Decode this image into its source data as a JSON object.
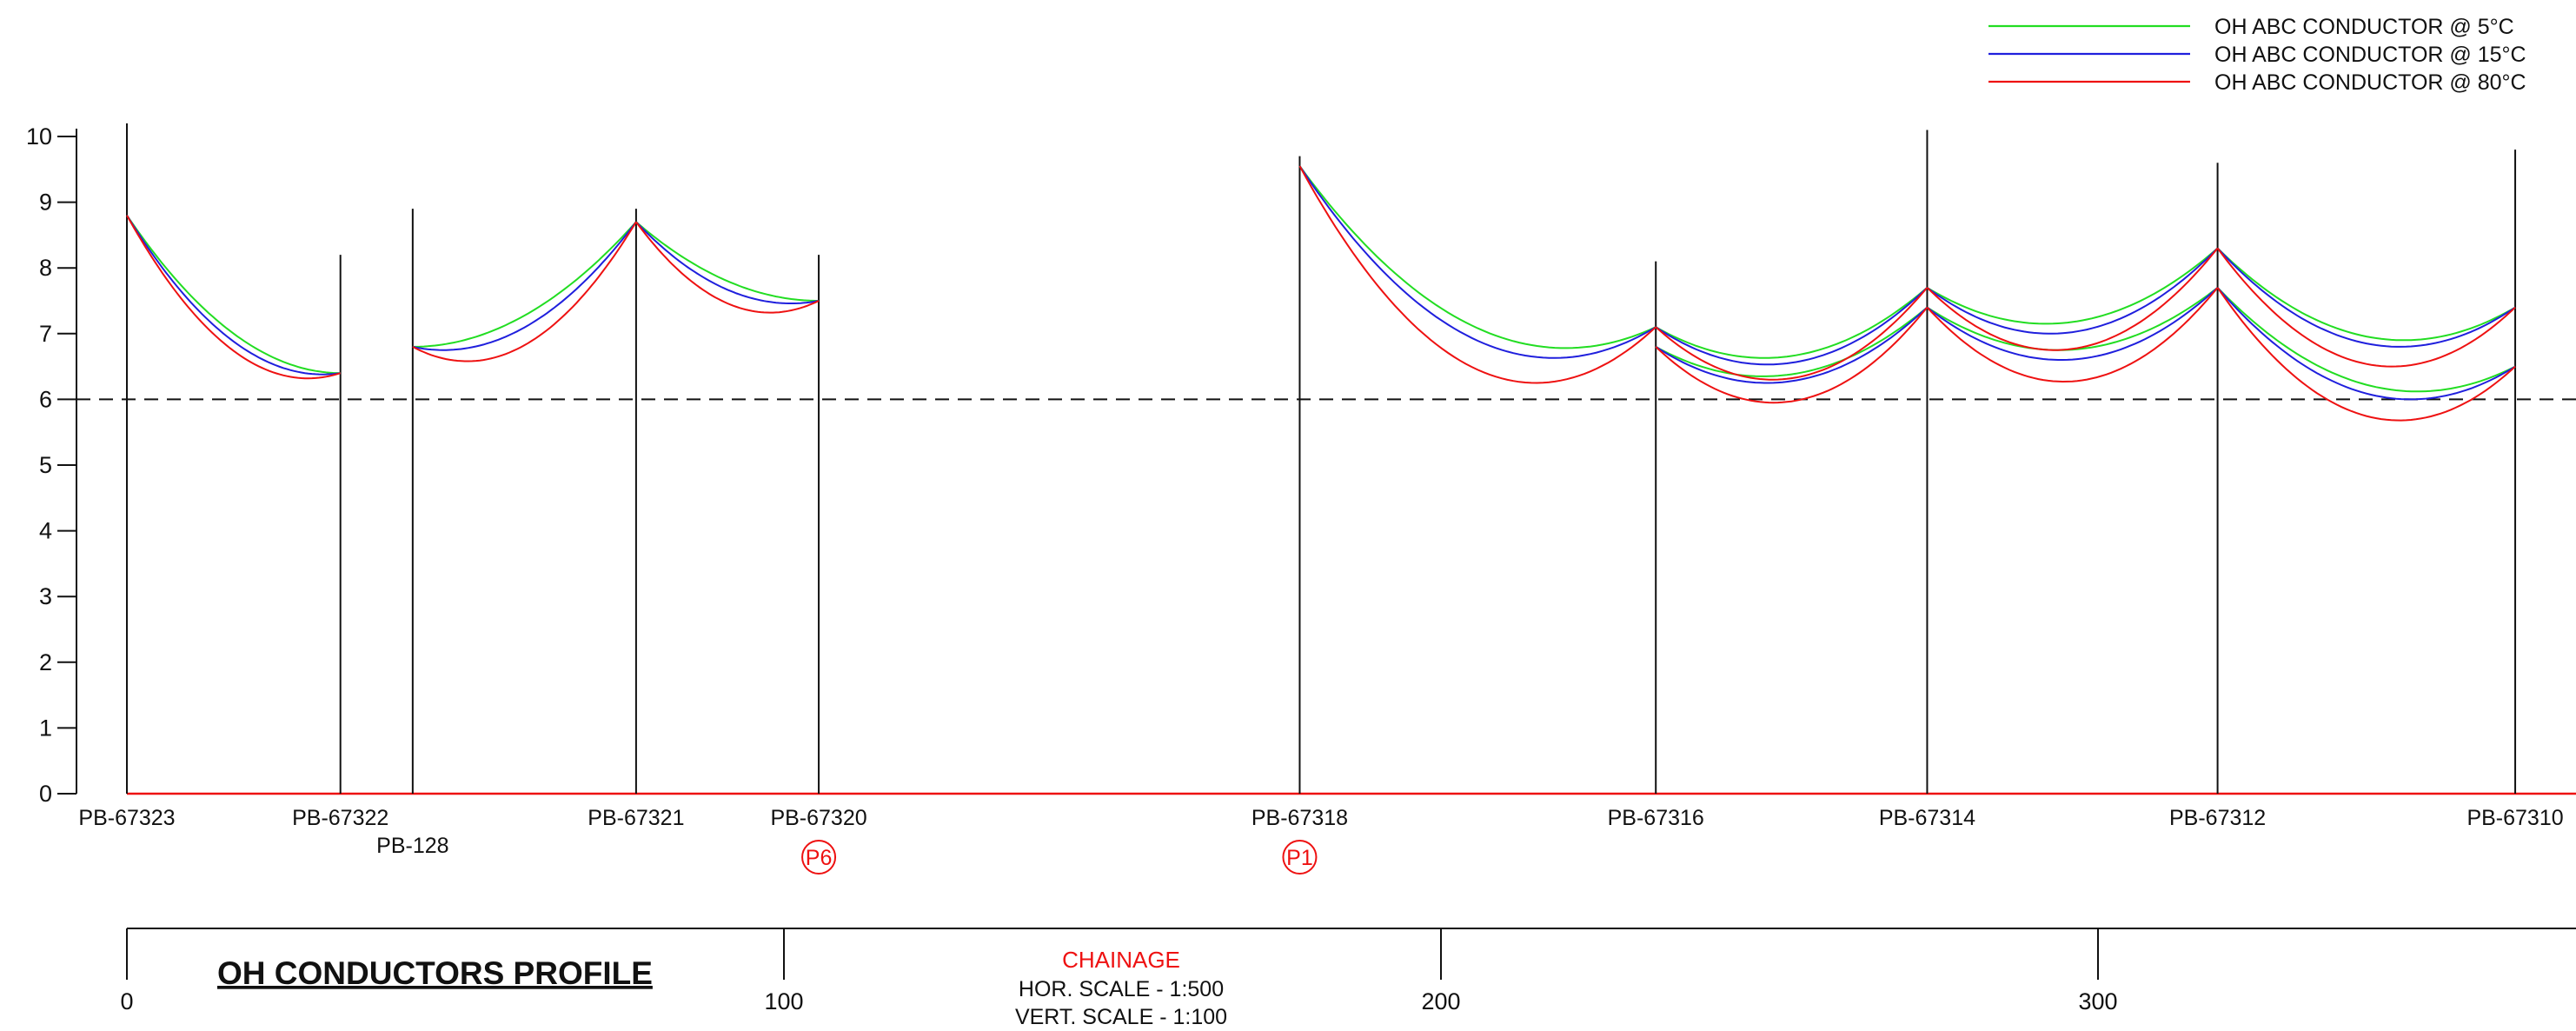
{
  "title": "OH CONDUCTORS PROFILE",
  "chainage": {
    "label": "CHAINAGE",
    "hor_scale": "HOR. SCALE - 1:500",
    "vert_scale": "VERT. SCALE - 1:100",
    "ticks": [
      0,
      100,
      200,
      300
    ]
  },
  "y_axis": {
    "min": 0,
    "max": 10,
    "ticks": [
      0,
      1,
      2,
      3,
      4,
      5,
      6,
      7,
      8,
      9,
      10
    ]
  },
  "clearance_line": {
    "value": 6
  },
  "colors": {
    "t5": "#22dd22",
    "t15": "#1f1fdd",
    "t80": "#ee1111",
    "ground": "#ee1111",
    "marker": "#ee1111",
    "chainage_title": "#ee1111"
  },
  "legend": [
    {
      "key": "t5",
      "label": "OH ABC CONDUCTOR @ 5°C"
    },
    {
      "key": "t15",
      "label": "OH ABC CONDUCTOR @ 15°C"
    },
    {
      "key": "t80",
      "label": "OH ABC CONDUCTOR @ 80°C"
    }
  ],
  "poles": [
    {
      "id": "p67323",
      "name": "PB-67323",
      "chainage": 0,
      "top": 10.2,
      "label_row": 1
    },
    {
      "id": "p67322",
      "name": "PB-67322",
      "chainage": 32.5,
      "top": 8.2,
      "label_row": 1
    },
    {
      "id": "p128",
      "name": "PB-128",
      "chainage": 43.5,
      "top": 8.9,
      "label_row": 2
    },
    {
      "id": "p67321",
      "name": "PB-67321",
      "chainage": 77.5,
      "top": 8.9,
      "label_row": 1
    },
    {
      "id": "p67320",
      "name": "PB-67320",
      "chainage": 105.3,
      "top": 8.2,
      "label_row": 1,
      "marker": "P6"
    },
    {
      "id": "p67318",
      "name": "PB-67318",
      "chainage": 178.5,
      "top": 9.7,
      "label_row": 1,
      "marker": "P1"
    },
    {
      "id": "p67316",
      "name": "PB-67316",
      "chainage": 232.7,
      "top": 8.1,
      "label_row": 1
    },
    {
      "id": "p67314",
      "name": "PB-67314",
      "chainage": 274.0,
      "top": 10.1,
      "label_row": 1
    },
    {
      "id": "p67312",
      "name": "PB-67312",
      "chainage": 318.2,
      "top": 9.6,
      "label_row": 1
    },
    {
      "id": "p67310",
      "name": "PB-67310",
      "chainage": 363.5,
      "top": 9.8,
      "label_row": 1
    }
  ],
  "chart_data": {
    "type": "line",
    "xlabel": "CHAINAGE",
    "xlim": [
      0,
      373
    ],
    "ylim": [
      0,
      10
    ],
    "grid": false,
    "legend_position": "top-right",
    "series": [
      {
        "name": "OH ABC CONDUCTOR @ 5°C",
        "key": "t5",
        "spans": [
          {
            "x1": 0,
            "y1": 8.8,
            "x2": 32.5,
            "y2": 6.4,
            "low": 6.4
          },
          {
            "x1": 43.5,
            "y1": 6.8,
            "x2": 77.5,
            "y2": 8.7,
            "low": 6.8
          },
          {
            "x1": 77.5,
            "y1": 8.7,
            "x2": 105.3,
            "y2": 7.5,
            "low": 7.5
          },
          {
            "x1": 178.5,
            "y1": 9.55,
            "x2": 232.7,
            "y2": 7.1,
            "low": 6.78
          },
          {
            "x1": 232.7,
            "y1": 7.1,
            "x2": 274.0,
            "y2": 7.7,
            "low": 6.63
          },
          {
            "x1": 232.7,
            "y1": 6.8,
            "x2": 274.0,
            "y2": 7.4,
            "low": 6.35
          },
          {
            "x1": 274.0,
            "y1": 7.7,
            "x2": 318.2,
            "y2": 8.3,
            "low": 7.15
          },
          {
            "x1": 274.0,
            "y1": 7.4,
            "x2": 318.2,
            "y2": 7.7,
            "low": 6.75
          },
          {
            "x1": 318.2,
            "y1": 8.3,
            "x2": 363.5,
            "y2": 7.4,
            "low": 6.9
          },
          {
            "x1": 318.2,
            "y1": 7.7,
            "x2": 363.5,
            "y2": 6.5,
            "low": 6.12
          }
        ]
      },
      {
        "name": "OH ABC CONDUCTOR @ 15°C",
        "key": "t15",
        "spans": [
          {
            "x1": 0,
            "y1": 8.8,
            "x2": 32.5,
            "y2": 6.4,
            "low": 6.38
          },
          {
            "x1": 43.5,
            "y1": 6.8,
            "x2": 77.5,
            "y2": 8.7,
            "low": 6.75
          },
          {
            "x1": 77.5,
            "y1": 8.7,
            "x2": 105.3,
            "y2": 7.5,
            "low": 7.46
          },
          {
            "x1": 178.5,
            "y1": 9.55,
            "x2": 232.7,
            "y2": 7.1,
            "low": 6.63
          },
          {
            "x1": 232.7,
            "y1": 7.1,
            "x2": 274.0,
            "y2": 7.7,
            "low": 6.53
          },
          {
            "x1": 232.7,
            "y1": 6.8,
            "x2": 274.0,
            "y2": 7.4,
            "low": 6.25
          },
          {
            "x1": 274.0,
            "y1": 7.7,
            "x2": 318.2,
            "y2": 8.3,
            "low": 7.0
          },
          {
            "x1": 274.0,
            "y1": 7.4,
            "x2": 318.2,
            "y2": 7.7,
            "low": 6.6
          },
          {
            "x1": 318.2,
            "y1": 8.3,
            "x2": 363.5,
            "y2": 7.4,
            "low": 6.8
          },
          {
            "x1": 318.2,
            "y1": 7.7,
            "x2": 363.5,
            "y2": 6.5,
            "low": 6.0
          }
        ]
      },
      {
        "name": "OH ABC CONDUCTOR @ 80°C",
        "key": "t80",
        "spans": [
          {
            "x1": 0,
            "y1": 8.8,
            "x2": 32.5,
            "y2": 6.4,
            "low": 6.32
          },
          {
            "x1": 43.5,
            "y1": 6.8,
            "x2": 77.5,
            "y2": 8.7,
            "low": 6.58
          },
          {
            "x1": 77.5,
            "y1": 8.7,
            "x2": 105.3,
            "y2": 7.5,
            "low": 7.32
          },
          {
            "x1": 178.5,
            "y1": 9.55,
            "x2": 232.7,
            "y2": 7.1,
            "low": 6.25
          },
          {
            "x1": 232.7,
            "y1": 7.1,
            "x2": 274.0,
            "y2": 7.7,
            "low": 6.3
          },
          {
            "x1": 232.7,
            "y1": 6.8,
            "x2": 274.0,
            "y2": 7.4,
            "low": 5.95
          },
          {
            "x1": 274.0,
            "y1": 7.7,
            "x2": 318.2,
            "y2": 8.3,
            "low": 6.75
          },
          {
            "x1": 274.0,
            "y1": 7.4,
            "x2": 318.2,
            "y2": 7.7,
            "low": 6.27
          },
          {
            "x1": 318.2,
            "y1": 8.3,
            "x2": 363.5,
            "y2": 7.4,
            "low": 6.5
          },
          {
            "x1": 318.2,
            "y1": 7.7,
            "x2": 363.5,
            "y2": 6.5,
            "low": 5.68
          }
        ]
      }
    ]
  }
}
